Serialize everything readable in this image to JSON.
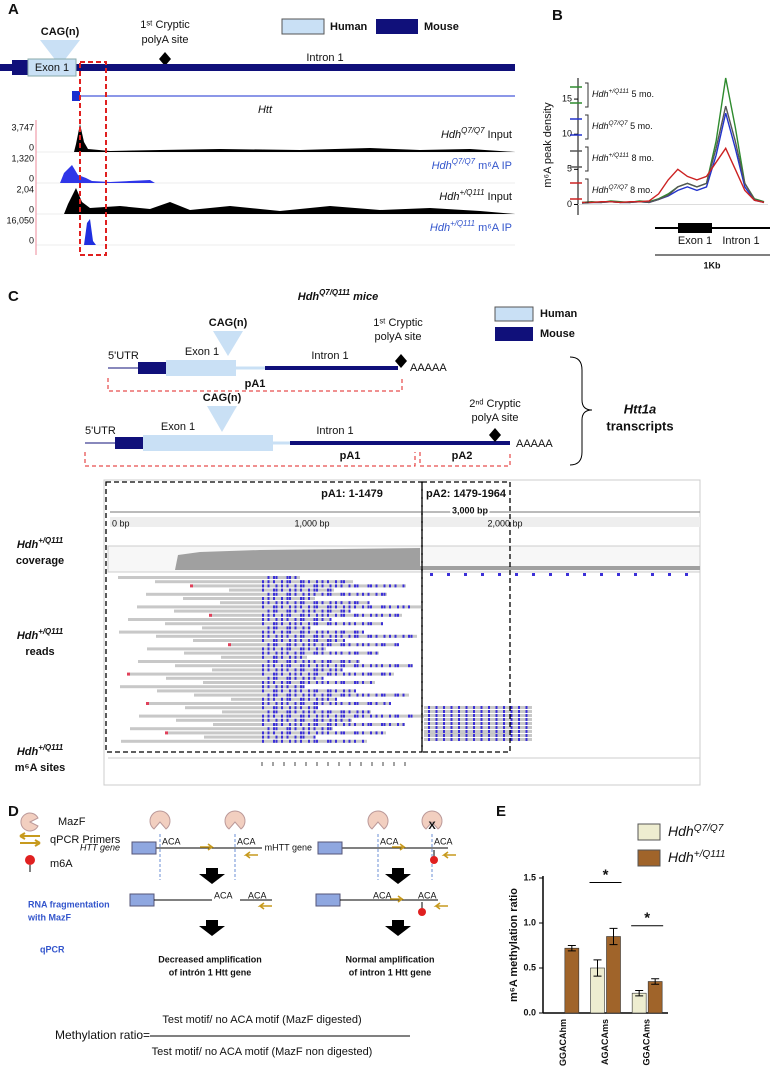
{
  "panel_a": {
    "label": "A",
    "cag": "CAG(n)",
    "exon": "Exon 1",
    "intron": "Intron 1",
    "polya": [
      "1ˢᵗ Cryptic",
      "polyA site"
    ],
    "legend": [
      "Human",
      "Mouse"
    ],
    "gene": "Htt",
    "tracks": [
      {
        "max": "3,747",
        "min": "0",
        "name": "HdhQ7/Q7 Input"
      },
      {
        "max": "1,320",
        "min": "0",
        "name": "HdhQ7/Q7 m⁶A IP"
      },
      {
        "max": "2,04",
        "min": "0",
        "name": "Hdh+/Q111 Input"
      },
      {
        "max": "16,050",
        "min": "0",
        "name": "Hdh+/Q111 m⁶A IP"
      }
    ]
  },
  "chart_data": [
    {
      "type": "line",
      "panel": "B",
      "ylabel": "m⁶A peak density",
      "categories": [
        null,
        null,
        null,
        null,
        null,
        null,
        null,
        null,
        null,
        null,
        null,
        null,
        null,
        null,
        null,
        null,
        null,
        null,
        null,
        null
      ],
      "series": [
        {
          "name": "Hdh+/Q111 5 mo.",
          "color": "#2e8b2e",
          "values": [
            0.3,
            0.4,
            0.3,
            0.5,
            0.4,
            0.3,
            0.5,
            0.4,
            0.8,
            1.5,
            2.5,
            3,
            2.5,
            3,
            9,
            18,
            11,
            3,
            0.8,
            0.4
          ]
        },
        {
          "name": "HdhQ7/Q7 5 mo.",
          "color": "#2233cc",
          "values": [
            0.2,
            0.3,
            0.3,
            0.4,
            0.3,
            0.3,
            0.4,
            0.3,
            0.7,
            1.2,
            2,
            2.5,
            2,
            2.5,
            7,
            13,
            8,
            2.5,
            0.6,
            0.3
          ]
        },
        {
          "name": "Hdh+/Q111 8 mo.",
          "color": "#555555",
          "values": [
            0.2,
            0.3,
            0.3,
            0.4,
            0.3,
            0.3,
            0.4,
            0.3,
            0.7,
            1.3,
            2.5,
            3,
            2.5,
            3,
            8,
            14,
            9,
            3,
            0.7,
            0.3
          ]
        },
        {
          "name": "HdhQ7/Q7 8 mo.",
          "color": "#cc2222",
          "values": [
            0.3,
            0.3,
            0.4,
            0.4,
            0.3,
            0.4,
            0.4,
            0.5,
            1.5,
            3.5,
            5,
            4,
            3.5,
            4,
            6,
            8,
            5,
            2,
            0.6,
            0.3
          ]
        }
      ],
      "ylim": [
        -1.5,
        18
      ],
      "yticks": [
        0,
        5,
        10,
        15
      ],
      "annotations": [
        "Exon 1",
        "Intron 1",
        "1Kb"
      ]
    },
    {
      "type": "bar",
      "panel": "E",
      "ylabel": "m⁶A methylation ratio",
      "categories": [
        "GGACAhm",
        "AGACAms",
        "GGACAms"
      ],
      "series": [
        {
          "name": "HdhQ7/Q7",
          "color": "#eeedd0",
          "values": [
            0,
            0.5,
            0.22
          ],
          "errors": [
            0,
            0.09,
            0.03
          ]
        },
        {
          "name": "Hdh+/Q111",
          "color": "#a0642a",
          "values": [
            0.72,
            0.85,
            0.35
          ],
          "errors": [
            0.03,
            0.09,
            0.03
          ]
        }
      ],
      "ylim": [
        0,
        1.5
      ],
      "yticks": [
        {
          "value": 0,
          "label": "0.0"
        },
        {
          "value": 0.5,
          "label": "0.5"
        },
        {
          "value": 1,
          "label": "1.0"
        },
        {
          "value": 1.5,
          "label": "1.5"
        }
      ],
      "annotations": [
        "*",
        "*"
      ]
    }
  ],
  "panel_c": {
    "label": "C",
    "title": "HdhQ7/Q111 mice",
    "legend": [
      "Human",
      "Mouse"
    ],
    "utr": "5'UTR",
    "exon": "Exon 1",
    "cag": "CAG(n)",
    "intron": "Intron 1",
    "polya1": [
      "1ˢᵗ Cryptic",
      "polyA site"
    ],
    "polya2": [
      "2ⁿᵈ Cryptic",
      "polyA site"
    ],
    "tail": "AAAAA",
    "pa1": "pA1",
    "pa2": "pA2",
    "group": [
      "Htt1a",
      "transcripts"
    ],
    "regions": [
      "pA1: 1-1479",
      "pA2: 1479-1964"
    ],
    "ruler": [
      "3,000 bp",
      "0 bp",
      "1,000 bp",
      "2,000 bp"
    ],
    "rows": [
      [
        "Hdh+/Q111",
        "coverage"
      ],
      [
        "Hdh+/Q111",
        "reads"
      ],
      [
        "Hdh+/Q111",
        "m⁶A sites"
      ]
    ]
  },
  "panel_d": {
    "label": "D",
    "legend": [
      "MazF",
      "qPCR Primers",
      "m6A"
    ],
    "steps": [
      "RNA fragmentation",
      "with MazF",
      "qPCR"
    ],
    "genes": [
      "HTT gene",
      "mHTT gene"
    ],
    "motif": "ACA",
    "cross": "X",
    "outcomes": [
      [
        "Decreased amplification",
        "of intrón 1 Htt gene"
      ],
      [
        "Normal amplification",
        "of intron 1 Htt gene"
      ]
    ],
    "formula": {
      "lhs": "Methylation ratio=",
      "num": "Test motif/ no ACA motif (MazF digested)",
      "den": "Test motif/ no ACA motif (MazF  non digested)"
    }
  }
}
